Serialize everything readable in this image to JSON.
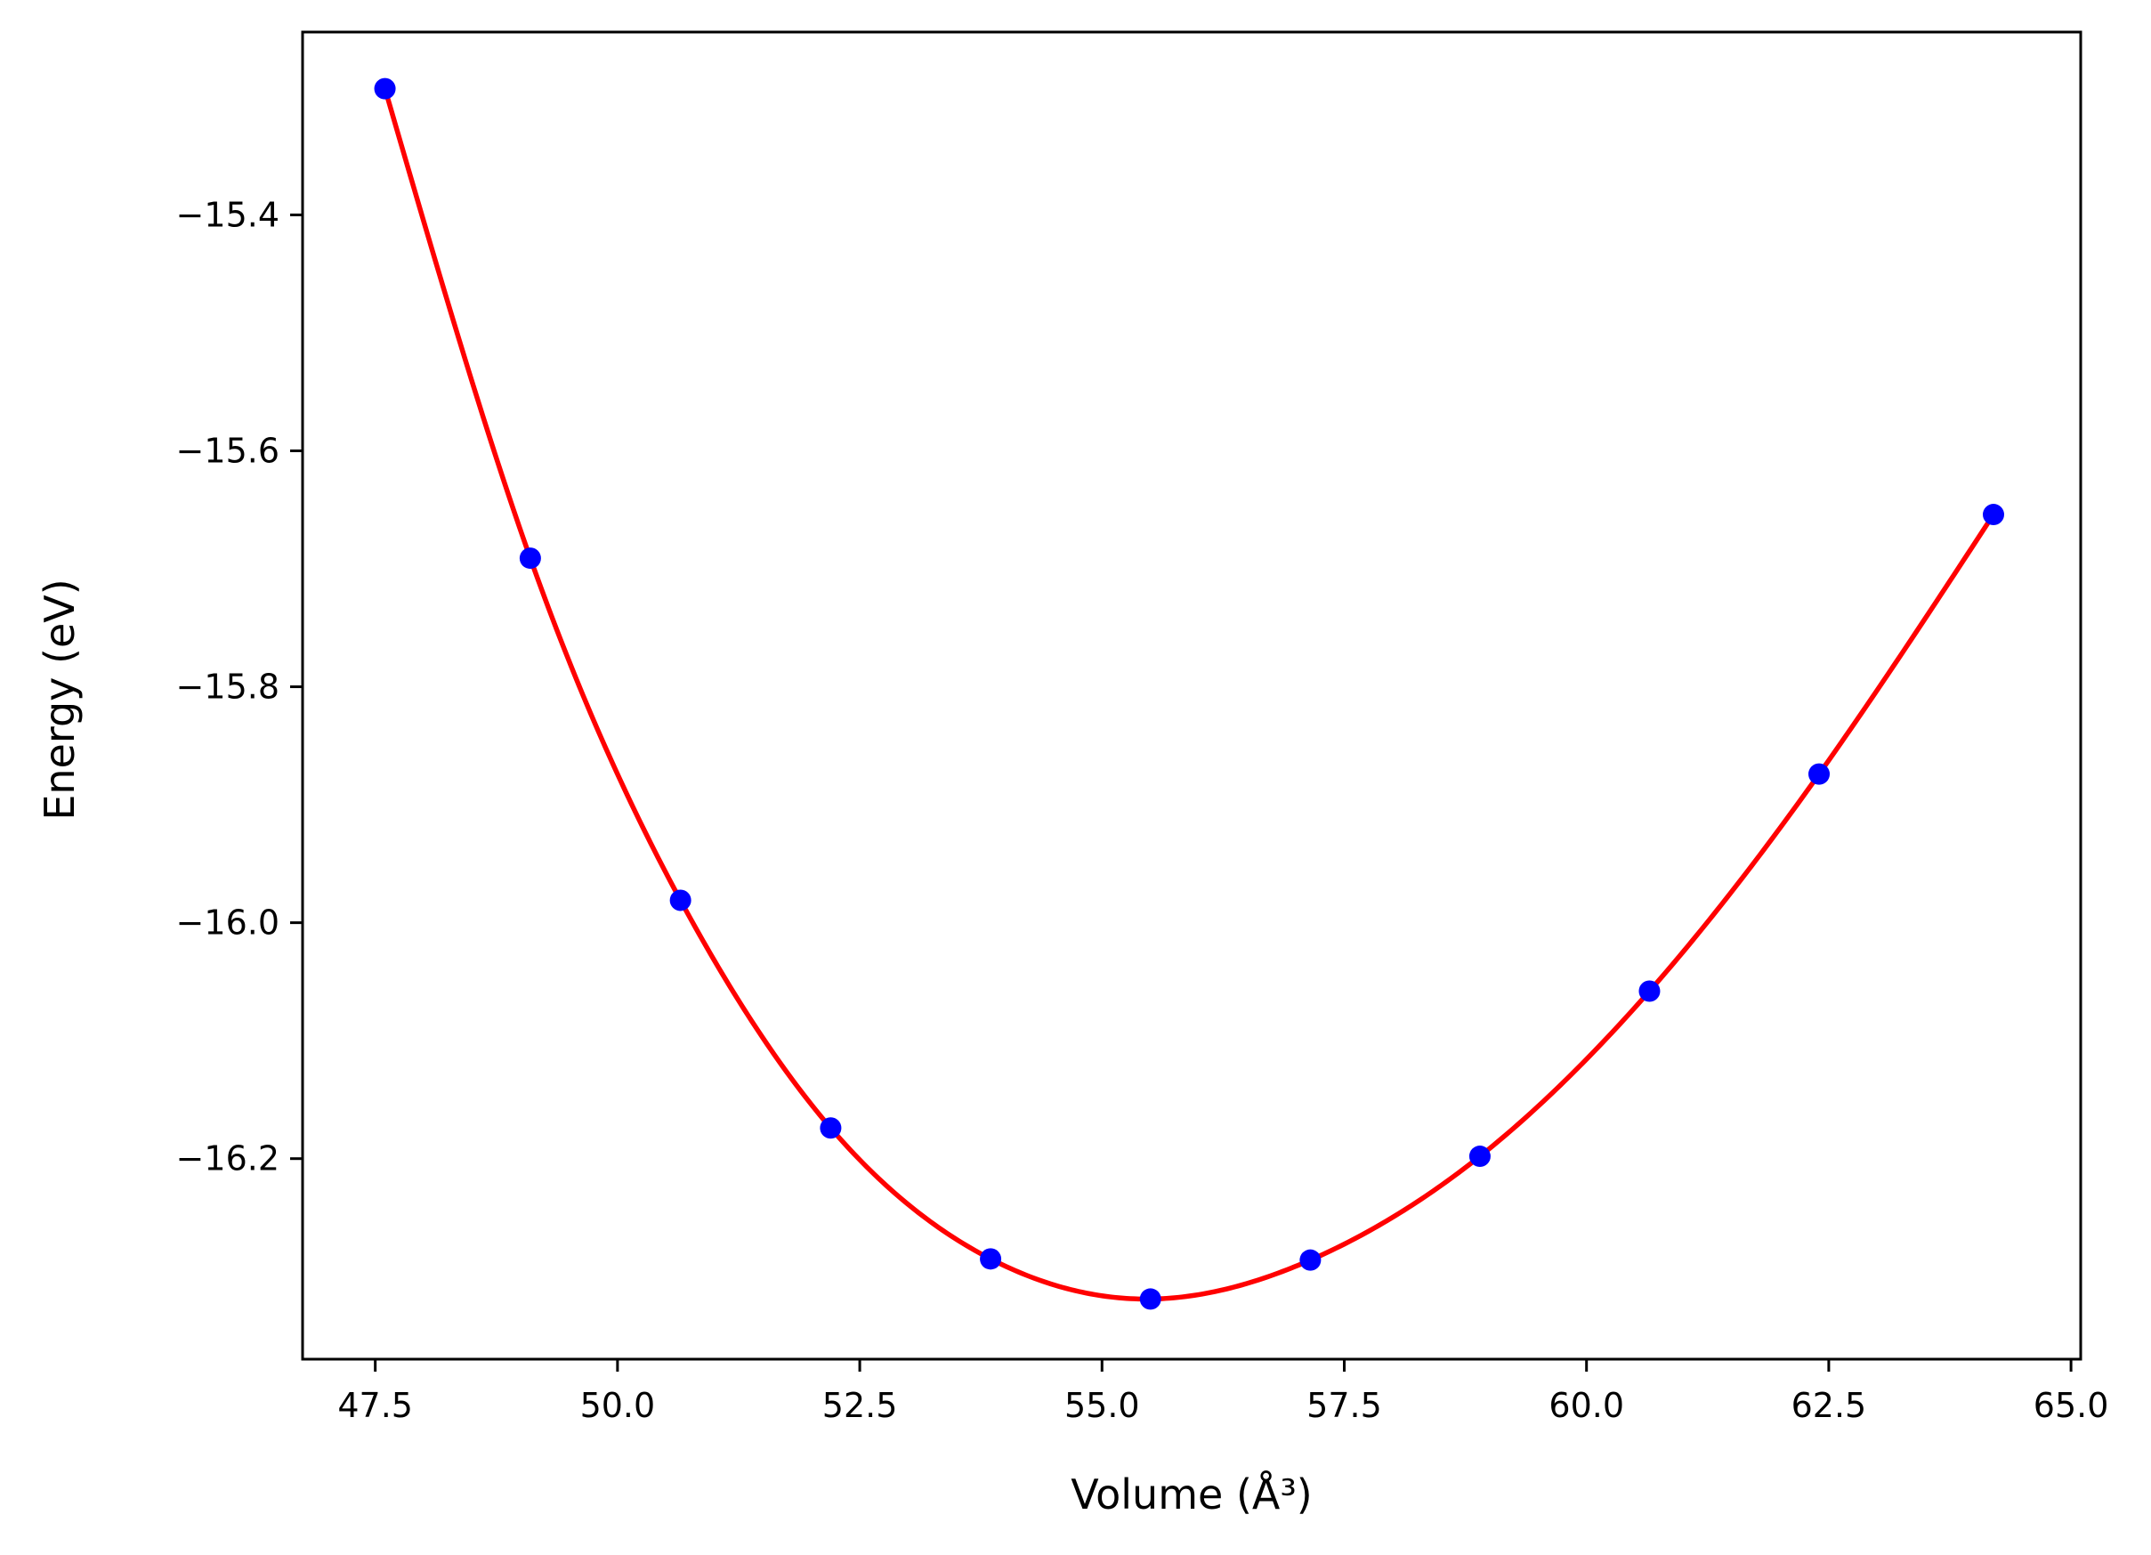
{
  "chart_data": {
    "type": "line",
    "xlabel": "Volume (Å³)",
    "ylabel": "Energy (eV)",
    "xlim": [
      46.75,
      65.1
    ],
    "ylim": [
      -16.37,
      -15.245
    ],
    "x_ticks": [
      47.5,
      50.0,
      52.5,
      55.0,
      57.5,
      60.0,
      62.5,
      65.0
    ],
    "x_tick_labels": [
      "47.5",
      "50.0",
      "52.5",
      "55.0",
      "57.5",
      "60.0",
      "62.5",
      "65.0"
    ],
    "y_ticks": [
      -15.4,
      -15.6,
      -15.8,
      -16.0,
      -16.2
    ],
    "y_tick_labels": [
      "−15.4",
      "−15.6",
      "−15.8",
      "−16.0",
      "−16.2"
    ],
    "grid": false,
    "series": [
      {
        "kind": "scatter",
        "color": "#0000ff",
        "marker": "circle",
        "x": [
          47.6,
          49.1,
          50.65,
          52.2,
          53.85,
          55.5,
          57.15,
          58.9,
          60.65,
          62.4,
          64.2
        ],
        "y": [
          -15.293,
          -15.691,
          -15.981,
          -16.174,
          -16.285,
          -16.319,
          -16.286,
          -16.198,
          -16.058,
          -15.874,
          -15.654
        ]
      },
      {
        "kind": "line",
        "color": "#ff0000",
        "fit": "smooth curve through data points"
      }
    ]
  }
}
